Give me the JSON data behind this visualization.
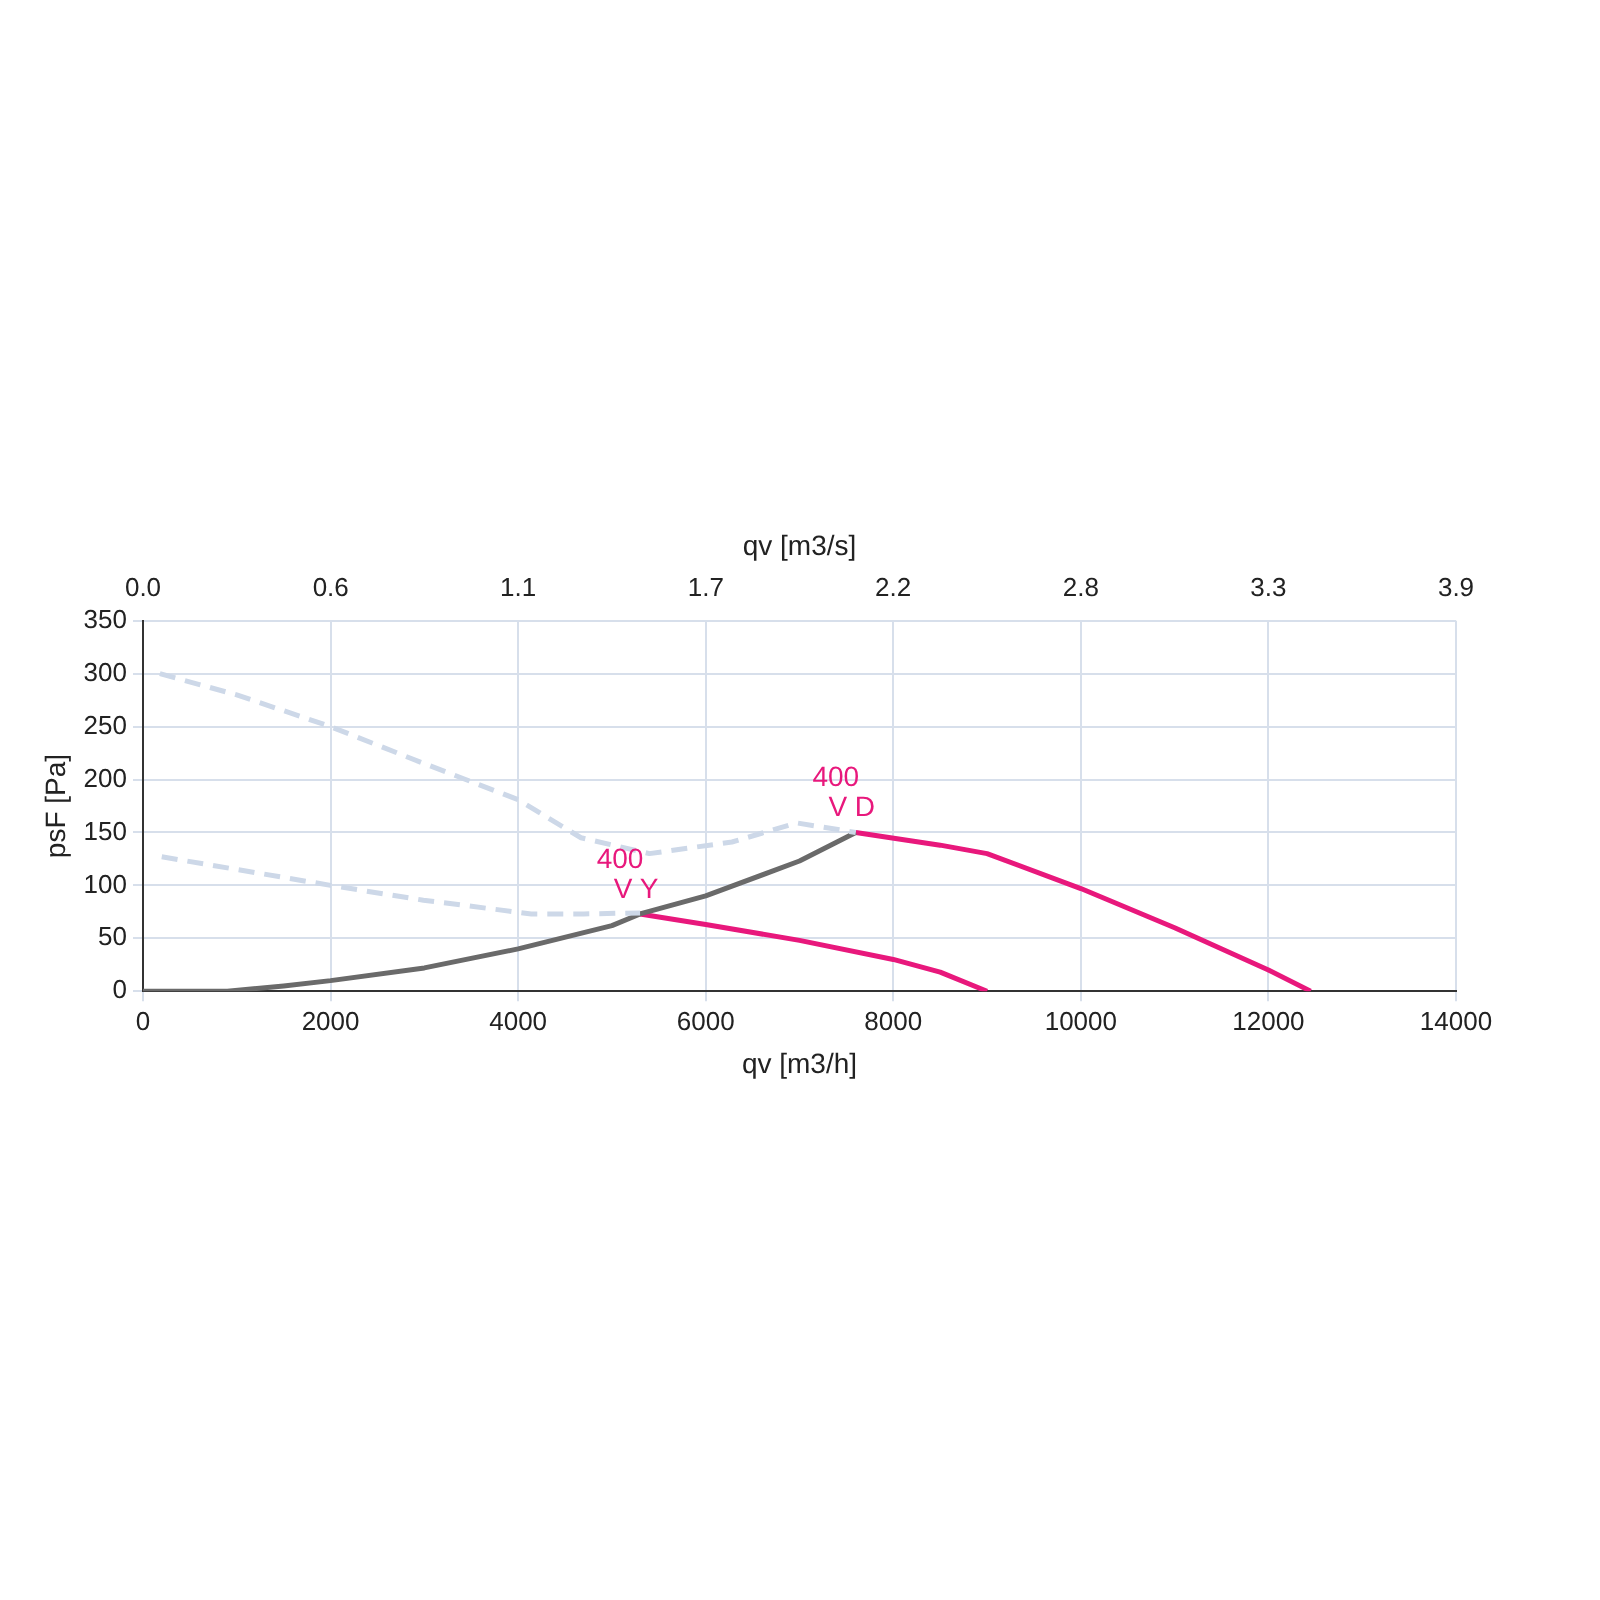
{
  "chart_data": {
    "type": "line",
    "xlabel": "qv [m3/h]",
    "ylabel": "psF [Pa]",
    "x2label": "qv [m3/s]",
    "xlim": [
      0,
      14000
    ],
    "xticks": [
      0,
      2000,
      4000,
      6000,
      8000,
      10000,
      12000,
      14000
    ],
    "x2lim": [
      0,
      3.889
    ],
    "x2ticks": [
      {
        "value": 0,
        "label": "0.0"
      },
      {
        "value": 0.556,
        "label": "0.6"
      },
      {
        "value": 1.111,
        "label": "1.1"
      },
      {
        "value": 1.667,
        "label": "1.7"
      },
      {
        "value": 2.222,
        "label": "2.2"
      },
      {
        "value": 2.778,
        "label": "2.8"
      },
      {
        "value": 3.333,
        "label": "3.3"
      },
      {
        "value": 3.889,
        "label": "3.9"
      }
    ],
    "ylim": [
      0,
      350
    ],
    "yticks": [
      0,
      50,
      100,
      150,
      200,
      250,
      300,
      350
    ],
    "grid": true,
    "legend": false,
    "marker": "none",
    "series": [
      {
        "color": "#cdd8e8",
        "line_style": "dashed",
        "x": [
          180,
          1000,
          2000,
          3000,
          4000,
          4670,
          5400,
          6280,
          6970,
          7600
        ],
        "values": [
          300,
          280,
          250,
          215,
          181,
          145,
          130,
          141,
          159,
          150
        ]
      },
      {
        "color": "#cdd8e8",
        "line_style": "dashed",
        "x": [
          200,
          1000,
          2000,
          2990,
          4140,
          4700,
          5300
        ],
        "values": [
          127,
          115,
          100,
          86,
          73,
          73,
          74
        ]
      },
      {
        "color": "#6a6a6a",
        "line_style": "solid",
        "x": [
          0,
          900,
          1500,
          2000,
          3000,
          4000,
          5000,
          5300,
          6000,
          7000,
          7600
        ],
        "values": [
          0,
          0,
          5,
          10,
          22,
          40,
          62,
          73,
          90,
          123,
          150
        ]
      },
      {
        "color": "#e8187c",
        "line_style": "solid",
        "x": [
          5300,
          6000,
          7000,
          8000,
          8500,
          9000
        ],
        "values": [
          73,
          63,
          48,
          30,
          18,
          0
        ]
      },
      {
        "color": "#e8187c",
        "line_style": "solid",
        "x": [
          7600,
          8500,
          9000,
          10000,
          11000,
          12000,
          12450
        ],
        "values": [
          150,
          138,
          130,
          97,
          60,
          20,
          0
        ]
      }
    ],
    "annotations": [
      {
        "text": "400\nV Y",
        "x": 5300,
        "y": 73
      },
      {
        "text": "400\nV D",
        "x": 7600,
        "y": 150
      }
    ]
  }
}
